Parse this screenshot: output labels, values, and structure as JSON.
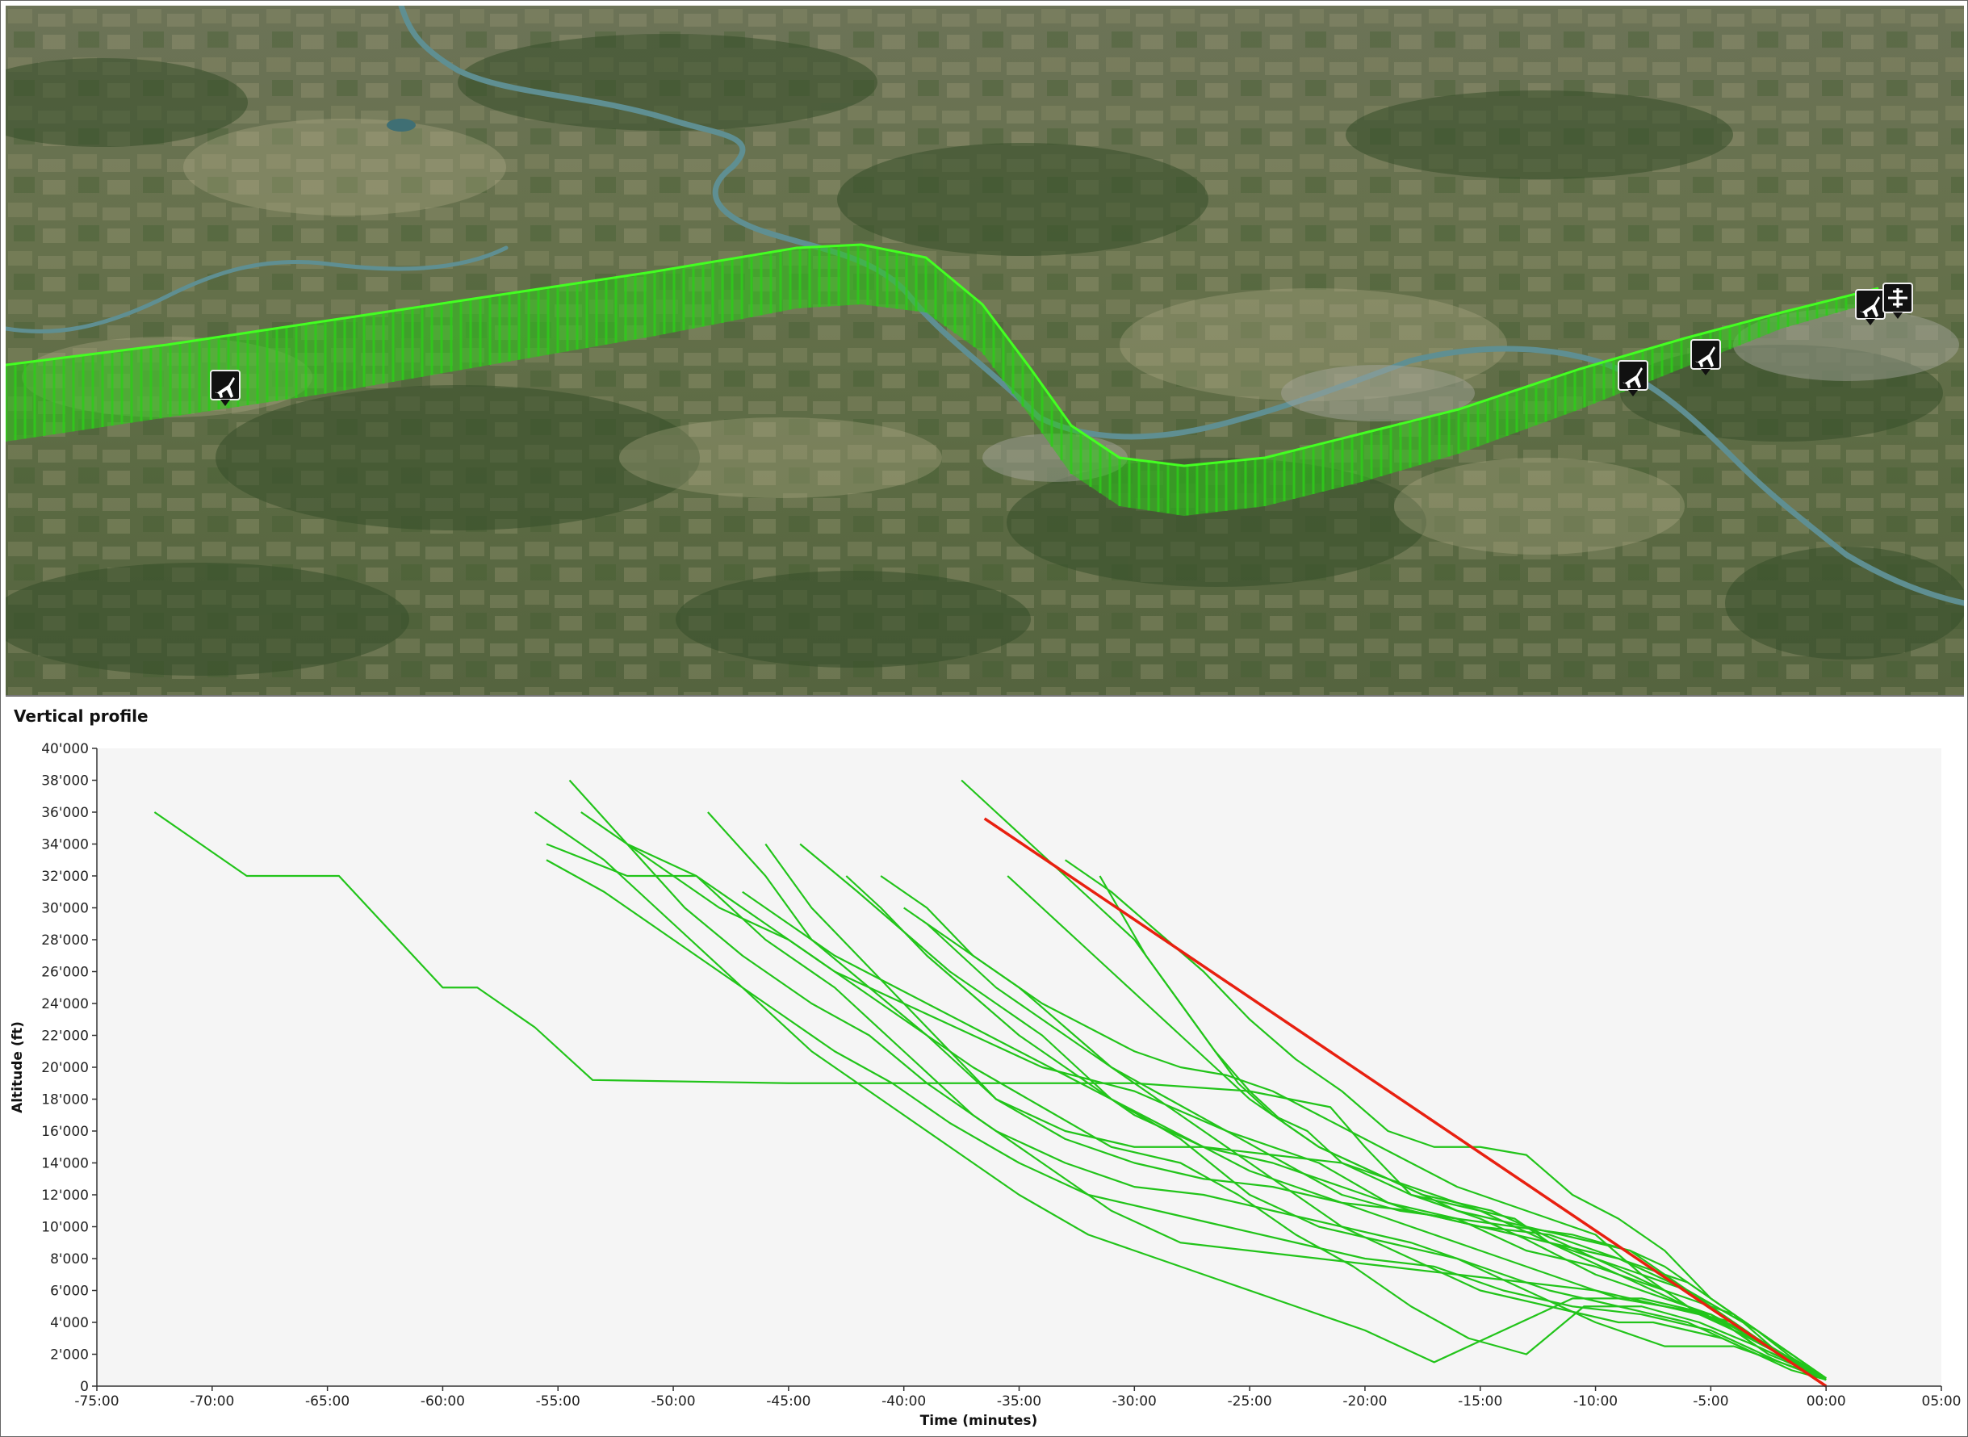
{
  "panel": {
    "title": "Vertical profile"
  },
  "map": {
    "track_color": "#2ecc1a",
    "river_color": "#5f8f92",
    "aircraft_icons": [
      "airplane-icon",
      "airplane-icon",
      "airplane-icon",
      "airplane-icon",
      "airport-icon"
    ]
  },
  "chart_data": {
    "type": "line",
    "title": "",
    "xlabel": "Time (minutes)",
    "ylabel": "Altitude (ft)",
    "xlim": [
      -75,
      5
    ],
    "ylim": [
      0,
      40000
    ],
    "x_ticks": [
      -75,
      -70,
      -65,
      -60,
      -55,
      -50,
      -45,
      -40,
      -35,
      -30,
      -25,
      -20,
      -15,
      -10,
      -5,
      0,
      5
    ],
    "x_tick_labels": [
      "-75:00",
      "-70:00",
      "-65:00",
      "-60:00",
      "-55:00",
      "-50:00",
      "-45:00",
      "-40:00",
      "-35:00",
      "-30:00",
      "-25:00",
      "-20:00",
      "-15:00",
      "-10:00",
      "-5:00",
      "00:00",
      "05:00"
    ],
    "y_ticks": [
      0,
      2000,
      4000,
      6000,
      8000,
      10000,
      12000,
      14000,
      16000,
      18000,
      20000,
      22000,
      24000,
      26000,
      28000,
      30000,
      32000,
      34000,
      36000,
      38000,
      40000
    ],
    "y_tick_labels": [
      "0",
      "2'000",
      "4'000",
      "6'000",
      "8'000",
      "10'000",
      "12'000",
      "14'000",
      "16'000",
      "18'000",
      "20'000",
      "22'000",
      "24'000",
      "26'000",
      "28'000",
      "30'000",
      "32'000",
      "34'000",
      "36'000",
      "38'000",
      "40'000"
    ],
    "grid": false,
    "background": "#f5f5f5",
    "series_color": "#22c41a",
    "reference_color": "#e82010",
    "reference_line": {
      "x": [
        -36.5,
        0
      ],
      "y": [
        35600,
        0
      ]
    },
    "series": [
      {
        "x": [
          -72.5,
          -70.5,
          -68.5,
          -64.5,
          -60,
          -58.5,
          -56,
          -53.5,
          -45,
          -41,
          -38.5,
          -34,
          -30,
          -25,
          -21.5,
          -20,
          -18,
          -15,
          -13,
          -10,
          -5,
          -2.5,
          0
        ],
        "y": [
          36000,
          34000,
          32000,
          32000,
          25000,
          25000,
          22500,
          19200,
          19000,
          19000,
          19000,
          19000,
          19000,
          18500,
          17500,
          15000,
          12000,
          10500,
          9200,
          7000,
          4500,
          2000,
          500
        ]
      },
      {
        "x": [
          -55.5,
          -52,
          -49,
          -46,
          -43,
          -40,
          -37,
          -34,
          -30,
          -26,
          -22,
          -19,
          -16,
          -13,
          -10,
          -7,
          -4,
          -2,
          0
        ],
        "y": [
          34000,
          32000,
          32000,
          29000,
          26000,
          24000,
          22000,
          20000,
          18500,
          16000,
          14000,
          11500,
          10500,
          8500,
          7500,
          6000,
          4500,
          2000,
          500
        ]
      },
      {
        "x": [
          -54.5,
          -52,
          -49.5,
          -47,
          -44,
          -41.5,
          -39,
          -36,
          -33,
          -30,
          -27,
          -24,
          -21,
          -18,
          -15,
          -12,
          -9,
          -6,
          -3,
          0
        ],
        "y": [
          38000,
          34000,
          30000,
          27000,
          24000,
          22000,
          19000,
          16000,
          14000,
          12500,
          12000,
          11000,
          10000,
          9000,
          7500,
          6000,
          5000,
          4000,
          2000,
          500
        ]
      },
      {
        "x": [
          -54,
          -51,
          -48,
          -45,
          -42,
          -39,
          -36,
          -33,
          -30,
          -27,
          -24,
          -21,
          -18,
          -15,
          -12,
          -9,
          -6,
          -3,
          0
        ],
        "y": [
          36000,
          33000,
          30000,
          28000,
          25000,
          22000,
          18000,
          15500,
          14000,
          13000,
          12500,
          11500,
          11000,
          10000,
          9500,
          8000,
          6500,
          3500,
          500
        ]
      },
      {
        "x": [
          -55.5,
          -53,
          -50.5,
          -48,
          -45.5,
          -43,
          -40.5,
          -38,
          -35,
          -32,
          -29,
          -26,
          -23,
          -20,
          -17,
          -14,
          -11,
          -8,
          -5,
          -2,
          0
        ],
        "y": [
          33000,
          31000,
          28500,
          26000,
          23500,
          21000,
          19000,
          16500,
          14000,
          12000,
          11000,
          10000,
          9000,
          8000,
          7500,
          6000,
          5000,
          4500,
          3500,
          1500,
          400
        ]
      },
      {
        "x": [
          -56,
          -53,
          -50,
          -47,
          -44,
          -41,
          -38,
          -35,
          -32,
          -29,
          -26,
          -23,
          -20,
          -17,
          -14,
          -11,
          -8,
          -5,
          -2,
          0
        ],
        "y": [
          36000,
          33000,
          29000,
          25000,
          21000,
          18000,
          15000,
          12000,
          9500,
          8000,
          6500,
          5000,
          3500,
          1500,
          3500,
          5500,
          5500,
          4500,
          2000,
          400
        ]
      },
      {
        "x": [
          -48.5,
          -46,
          -44,
          -41.5,
          -39,
          -37,
          -34,
          -31,
          -28,
          -25.5,
          -23,
          -20.5,
          -18,
          -15.5,
          -13,
          -10.5,
          -8,
          -5.5,
          -3,
          0
        ],
        "y": [
          36000,
          32000,
          28000,
          25000,
          22000,
          20000,
          17500,
          15000,
          14000,
          12000,
          9500,
          7500,
          5000,
          3000,
          2000,
          5000,
          5000,
          4000,
          2500,
          500
        ]
      },
      {
        "x": [
          -52,
          -49,
          -46,
          -43,
          -40,
          -37,
          -34,
          -31,
          -28,
          -25,
          -22,
          -19,
          -16,
          -13,
          -10,
          -7,
          -4,
          -2,
          0
        ],
        "y": [
          34000,
          32000,
          28000,
          25000,
          21000,
          17000,
          14000,
          11000,
          9000,
          8500,
          8000,
          7500,
          7000,
          6500,
          6000,
          5000,
          4000,
          2000,
          400
        ]
      },
      {
        "x": [
          -46,
          -44,
          -42,
          -40,
          -38,
          -36,
          -33,
          -30,
          -27,
          -24,
          -21,
          -18,
          -15,
          -12,
          -9,
          -6,
          -3,
          0
        ],
        "y": [
          34000,
          30000,
          27000,
          24000,
          21000,
          18000,
          16000,
          15000,
          15000,
          14500,
          14000,
          12500,
          11000,
          9000,
          7500,
          6000,
          3500,
          500
        ]
      },
      {
        "x": [
          -44.5,
          -42,
          -40,
          -38,
          -36,
          -34,
          -31,
          -28,
          -25,
          -22,
          -19,
          -16,
          -13,
          -10,
          -7,
          -4,
          -2,
          0
        ],
        "y": [
          34000,
          31000,
          28500,
          26000,
          24000,
          22000,
          18000,
          15500,
          12000,
          10000,
          9000,
          8000,
          6000,
          4000,
          2500,
          2500,
          1500,
          400
        ]
      },
      {
        "x": [
          -42.5,
          -41,
          -39,
          -37,
          -35,
          -33,
          -30,
          -27,
          -24,
          -21,
          -18,
          -15,
          -12,
          -9,
          -6,
          -3,
          0
        ],
        "y": [
          32000,
          30000,
          27000,
          24500,
          22000,
          20000,
          17000,
          15000,
          14000,
          12500,
          11000,
          10000,
          9000,
          8000,
          6000,
          3500,
          500
        ]
      },
      {
        "x": [
          -41,
          -39,
          -37,
          -35,
          -33,
          -31,
          -28.5,
          -26,
          -23.5,
          -21,
          -18.5,
          -16,
          -13.5,
          -11,
          -8.5,
          -6,
          -3,
          0
        ],
        "y": [
          32000,
          30000,
          27000,
          25000,
          22500,
          20000,
          18000,
          16000,
          14000,
          12000,
          11000,
          10500,
          10000,
          9500,
          8500,
          6000,
          3000,
          400
        ]
      },
      {
        "x": [
          -37.5,
          -36,
          -34.5,
          -33,
          -31.5,
          -30,
          -28.5,
          -27,
          -25.5,
          -24,
          -22.5,
          -21,
          -19.5,
          -18,
          -16.5,
          -15,
          -13.5,
          -12,
          -10.5,
          -9,
          -7.5,
          -6,
          -4.5,
          -3,
          -1.5,
          0
        ],
        "y": [
          38000,
          36000,
          34000,
          32000,
          30000,
          28000,
          25000,
          22000,
          19000,
          17000,
          16000,
          14000,
          13000,
          12000,
          11500,
          11000,
          10500,
          9000,
          8000,
          7000,
          6000,
          5000,
          4000,
          2500,
          1500,
          400
        ]
      },
      {
        "x": [
          -35.5,
          -34,
          -32.5,
          -31,
          -29.5,
          -28,
          -26.5,
          -25,
          -23.5,
          -22,
          -20.5,
          -19,
          -17.5,
          -16,
          -14.5,
          -13,
          -11.5,
          -10,
          -8.5,
          -7,
          -5.5,
          -4,
          -2.5,
          -1,
          0
        ],
        "y": [
          32000,
          30000,
          28000,
          26000,
          24000,
          22000,
          20000,
          18000,
          16500,
          15000,
          14000,
          13000,
          12000,
          11500,
          11000,
          10000,
          9000,
          8000,
          7000,
          6000,
          4500,
          3500,
          2500,
          1200,
          500
        ]
      },
      {
        "x": [
          -31.5,
          -30.5,
          -29.5,
          -28,
          -26.5,
          -25,
          -23.5,
          -22,
          -20.5,
          -19,
          -17.5,
          -16,
          -14.5,
          -13,
          -11.5,
          -10,
          -8.5,
          -7,
          -5.5,
          -4,
          -2.5,
          -1,
          0
        ],
        "y": [
          32000,
          29500,
          27000,
          24000,
          21000,
          18500,
          16500,
          15000,
          14000,
          13000,
          12000,
          11000,
          10500,
          10000,
          9500,
          9000,
          8500,
          7500,
          6000,
          4500,
          3000,
          1500,
          500
        ]
      },
      {
        "x": [
          -40,
          -38,
          -36,
          -34,
          -32,
          -30,
          -28,
          -26,
          -24,
          -22,
          -20,
          -18,
          -16,
          -14,
          -12,
          -10,
          -8,
          -6,
          -4,
          -2,
          0
        ],
        "y": [
          30000,
          28000,
          26000,
          24000,
          22500,
          21000,
          20000,
          19500,
          18500,
          17000,
          15500,
          14000,
          12500,
          11500,
          10500,
          9500,
          7000,
          5000,
          3500,
          2000,
          500
        ]
      },
      {
        "x": [
          -33,
          -31,
          -29,
          -27,
          -25,
          -23,
          -21,
          -19,
          -17,
          -15,
          -13,
          -11,
          -9,
          -7,
          -5,
          -3,
          -1.5,
          0
        ],
        "y": [
          33000,
          31000,
          28500,
          26000,
          23000,
          20500,
          18500,
          16000,
          15000,
          15000,
          14500,
          12000,
          10500,
          8500,
          5500,
          3500,
          1800,
          500
        ]
      },
      {
        "x": [
          -47,
          -45,
          -43,
          -41,
          -39,
          -37,
          -35,
          -33,
          -31,
          -29,
          -27,
          -25,
          -23,
          -21,
          -19,
          -17,
          -15,
          -13,
          -11,
          -9,
          -7,
          -5,
          -3,
          -1.5,
          0
        ],
        "y": [
          31000,
          29000,
          27000,
          25500,
          24000,
          22500,
          21000,
          19500,
          18000,
          16500,
          15000,
          13500,
          12500,
          11500,
          10500,
          9500,
          8500,
          7500,
          6500,
          5500,
          5000,
          4500,
          3000,
          1500,
          400
        ]
      },
      {
        "x": [
          -39,
          -37.5,
          -36,
          -34.5,
          -33,
          -31.5,
          -30,
          -28.5,
          -27,
          -25.5,
          -24,
          -22.5,
          -21,
          -19.5,
          -18,
          -16.5,
          -15,
          -13.5,
          -12,
          -10.5,
          -9,
          -7.5,
          -6,
          -4.5,
          -3,
          -1.5,
          0
        ],
        "y": [
          29000,
          27000,
          25000,
          23500,
          22000,
          20500,
          19000,
          17500,
          16000,
          14500,
          13000,
          11500,
          10000,
          9000,
          8000,
          7000,
          6000,
          5500,
          5000,
          4500,
          4000,
          4000,
          3500,
          3000,
          2000,
          1000,
          400
        ]
      }
    ]
  }
}
